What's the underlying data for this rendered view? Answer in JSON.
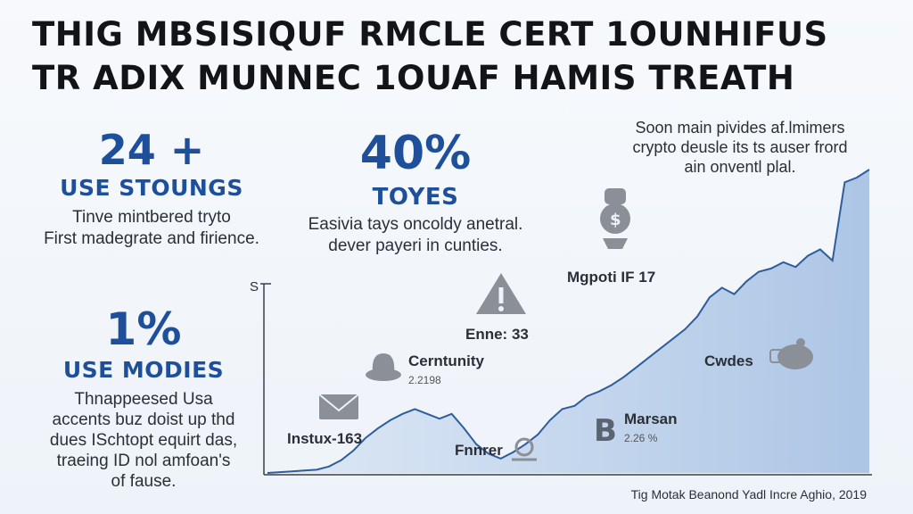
{
  "title": {
    "line1": "THIG MBSISIQUF RMCLE CERT 1OUNHIFUS",
    "line2": "TR ADIX MUNNEC 1OUAF HAMIS TREATH"
  },
  "stats": [
    {
      "big": "24 +",
      "label": "USE STOUNGS",
      "desc": [
        "Tinve mintbered tryto",
        "First madegrate and firience."
      ]
    },
    {
      "big": "40%",
      "label": "TOYES",
      "desc": [
        "Easivia tays oncoldy anetral.",
        "dever payeri in cunties."
      ]
    },
    {
      "big": "1%",
      "label": "USE MODIES",
      "desc": [
        "Thnappeesed Usa",
        "accents buz doist up thd",
        "dues ISchtopt equirt das,",
        "traeing ID nol amfoan's",
        "of fause."
      ]
    }
  ],
  "top_note": [
    "Soon main pivides af.lmimers",
    "crypto deusle its ts auser frord",
    "ain onventl plal."
  ],
  "footer": "Tig Motak Beanond Yadl Incre Aghio, 2019",
  "colors": {
    "accent": "#1d4f9a",
    "area_fill": "#b7cde8",
    "line": "#2f5d9b",
    "icon": "#8a8f98"
  },
  "chart_data": {
    "type": "area",
    "ylabel": "S",
    "xlabel": "",
    "series": [
      {
        "values": [
          0.0,
          0.5,
          1.0,
          1.5,
          2.0,
          4.0,
          8.0,
          14.0,
          22.0,
          28.0,
          33.0,
          37.0,
          40.0,
          37.0,
          34.0,
          37.0,
          28.0,
          18.0,
          12.0,
          9.0,
          13.0,
          18.0,
          24.0,
          33.0,
          40.0,
          42.0,
          48.0,
          51.0,
          55.0,
          60.0,
          66.0,
          72.0,
          78.0,
          84.0,
          90.0,
          98.0,
          110.0,
          116.0,
          112.0,
          120.0,
          126.0,
          128.0,
          132.0,
          129.0,
          136.0,
          140.0,
          133.0,
          182.0,
          185.0,
          190.0
        ]
      }
    ],
    "annotations": [
      {
        "label": "Instux-163",
        "sub": "",
        "icon": "envelope-icon",
        "at": 3
      },
      {
        "label": "Cerntunity",
        "sub": "2.2198",
        "icon": "hat-icon",
        "at": 10
      },
      {
        "label": "Enne: 33",
        "sub": "",
        "icon": "warning-icon",
        "at": 15
      },
      {
        "label": "Fnnrer",
        "sub": "",
        "icon": "hand-coin-icon",
        "at": 17
      },
      {
        "label": "Marsan",
        "sub": "2.26 %",
        "icon": "bitcoin-icon",
        "at": 24
      },
      {
        "label": "Mgpoti IF 17",
        "sub": "",
        "icon": "money-bag-icon",
        "at": 30
      },
      {
        "label": "Cwdes",
        "sub": "",
        "icon": "pig-icon",
        "at": 42
      }
    ]
  }
}
